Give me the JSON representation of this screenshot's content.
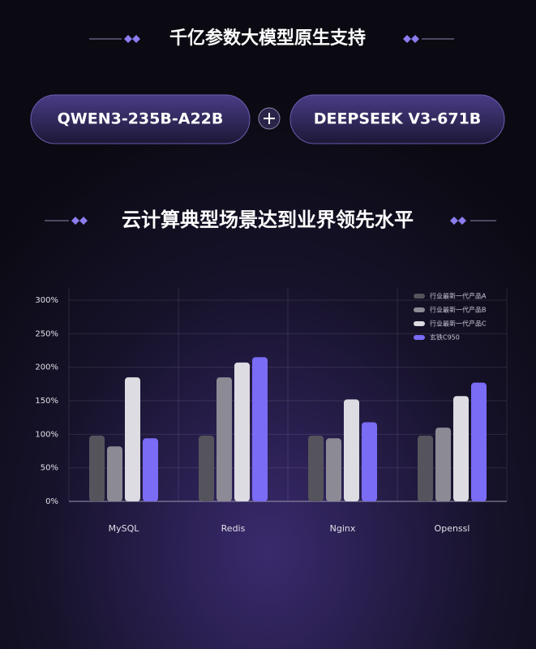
{
  "header": {
    "title": "千亿参数大模型原生支持",
    "models": [
      "QWEN3-235B-A22B",
      "DEEPSEEK V3-671B"
    ]
  },
  "chart_data": {
    "type": "bar",
    "title": "云计算典型场景达到业界领先水平",
    "categories": [
      "MySQL",
      "Redis",
      "Nginx",
      "Openssl"
    ],
    "series": [
      {
        "name": "行业最新一代产品A",
        "color": "#55545c",
        "values": [
          98,
          98,
          98,
          98
        ]
      },
      {
        "name": "行业最新一代产品B",
        "color": "#8c8a94",
        "values": [
          82,
          185,
          94,
          110
        ]
      },
      {
        "name": "行业最新一代产品C",
        "color": "#dcdce2",
        "values": [
          185,
          207,
          152,
          157
        ]
      },
      {
        "name": "玄铁C950",
        "color": "#7a6cf4",
        "values": [
          94,
          215,
          118,
          177
        ]
      }
    ],
    "ylim": [
      0,
      300
    ],
    "yticks": [
      {
        "value": 0,
        "label": "0%"
      },
      {
        "value": 50,
        "label": "50%"
      },
      {
        "value": 100,
        "label": "100%"
      },
      {
        "value": 150,
        "label": "150%"
      },
      {
        "value": 200,
        "label": "200%"
      },
      {
        "value": 250,
        "label": "250%"
      },
      {
        "value": 300,
        "label": "300%"
      }
    ],
    "grid": true,
    "legend": "top-right"
  }
}
